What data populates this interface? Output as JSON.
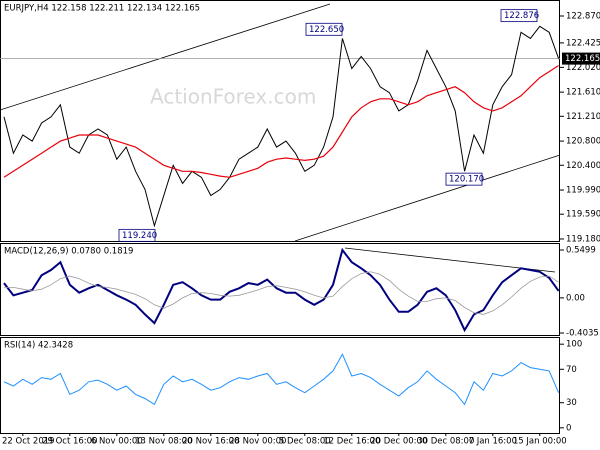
{
  "chart_data": [
    {
      "type": "line",
      "title": "EURJPY,H4  122.158 122.211 122.134 122.165",
      "watermark": "ActionForex.com",
      "ylim": [
        119.163,
        123.052
      ],
      "yticks": [
        {
          "value": 122.87,
          "label": "122.870"
        },
        {
          "value": 122.425,
          "label": "122.425"
        },
        {
          "value": 122.02,
          "label": "122.020"
        },
        {
          "value": 121.61,
          "label": "121.610"
        },
        {
          "value": 121.21,
          "label": "121.210"
        },
        {
          "value": 120.8,
          "label": "120.800"
        },
        {
          "value": 120.4,
          "label": "120.400"
        },
        {
          "value": 119.99,
          "label": "119.990"
        },
        {
          "value": 119.59,
          "label": "119.590"
        },
        {
          "value": 119.18,
          "label": "119.180"
        }
      ],
      "last_price": {
        "value": 122.165,
        "label": "122.165"
      },
      "annotations": [
        {
          "value": 122.65,
          "label": "122.650"
        },
        {
          "value": 119.24,
          "label": "119.240"
        },
        {
          "value": 120.17,
          "label": "120.170"
        },
        {
          "value": 122.876,
          "label": "122.876"
        }
      ],
      "series": [
        {
          "color": "#000000",
          "values": [
            121.2,
            120.6,
            120.9,
            120.8,
            121.1,
            121.2,
            121.4,
            120.7,
            120.6,
            120.9,
            121.0,
            120.9,
            120.5,
            120.7,
            120.3,
            120.0,
            119.4,
            119.9,
            120.4,
            120.1,
            120.3,
            120.2,
            119.9,
            120.0,
            120.2,
            120.5,
            120.6,
            120.7,
            121.0,
            120.7,
            120.8,
            120.6,
            120.3,
            120.4,
            120.7,
            121.2,
            122.5,
            122.0,
            122.2,
            122.0,
            121.7,
            121.6,
            121.3,
            121.4,
            121.8,
            122.3,
            122.0,
            121.7,
            121.3,
            120.3,
            120.9,
            120.6,
            121.4,
            121.7,
            121.9,
            122.6,
            122.5,
            122.7,
            122.6,
            122.165
          ]
        },
        {
          "color": "#e8000b",
          "values": [
            120.2,
            120.3,
            120.4,
            120.5,
            120.6,
            120.7,
            120.8,
            120.85,
            120.9,
            120.9,
            120.9,
            120.85,
            120.8,
            120.75,
            120.7,
            120.6,
            120.5,
            120.4,
            120.35,
            120.3,
            120.3,
            120.28,
            120.25,
            120.22,
            120.2,
            120.25,
            120.3,
            120.35,
            120.45,
            120.5,
            120.52,
            120.5,
            120.48,
            120.5,
            120.55,
            120.7,
            120.95,
            121.2,
            121.35,
            121.45,
            121.5,
            121.5,
            121.45,
            121.4,
            121.45,
            121.55,
            121.6,
            121.65,
            121.7,
            121.6,
            121.45,
            121.35,
            121.3,
            121.35,
            121.45,
            121.55,
            121.7,
            121.85,
            121.95,
            122.05
          ]
        }
      ]
    },
    {
      "type": "line",
      "title": "MACD(12,26,9) 0.0780 0.1819",
      "ylim": [
        -0.438,
        0.619
      ],
      "yticks": [
        0.5499,
        {
          "value": 0,
          "label": "0.00"
        },
        -0.4035
      ],
      "series": [
        {
          "color": "#00007f",
          "values": [
            0.17,
            0.03,
            0.06,
            0.09,
            0.26,
            0.32,
            0.41,
            0.15,
            0.06,
            0.11,
            0.15,
            0.09,
            0.03,
            -0.02,
            -0.08,
            -0.19,
            -0.29,
            -0.08,
            0.15,
            0.18,
            0.11,
            0.03,
            -0.02,
            -0.02,
            0.07,
            0.11,
            0.17,
            0.15,
            0.21,
            0.11,
            0.06,
            0.06,
            -0.02,
            -0.08,
            -0.02,
            0.15,
            0.55,
            0.41,
            0.34,
            0.26,
            0.15,
            -0.02,
            -0.16,
            -0.16,
            -0.08,
            0.07,
            0.11,
            0.03,
            -0.14,
            -0.37,
            -0.19,
            -0.14,
            0.03,
            0.18,
            0.26,
            0.34,
            0.32,
            0.3,
            0.23,
            0.08
          ]
        },
        {
          "color": "#9a9a9a",
          "values": [
            0.12,
            0.12,
            0.1,
            0.08,
            0.1,
            0.15,
            0.22,
            0.25,
            0.22,
            0.17,
            0.13,
            0.12,
            0.1,
            0.07,
            0.04,
            -0.01,
            -0.08,
            -0.12,
            -0.07,
            0.0,
            0.05,
            0.06,
            0.05,
            0.03,
            0.02,
            0.03,
            0.06,
            0.09,
            0.13,
            0.14,
            0.12,
            0.1,
            0.07,
            0.03,
            0.0,
            0.02,
            0.13,
            0.22,
            0.28,
            0.3,
            0.27,
            0.2,
            0.1,
            0.02,
            -0.04,
            -0.04,
            -0.01,
            0.0,
            -0.03,
            -0.11,
            -0.17,
            -0.19,
            -0.15,
            -0.08,
            0.01,
            0.11,
            0.19,
            0.24,
            0.25,
            0.18
          ]
        }
      ]
    },
    {
      "type": "line",
      "title": "RSI(14) 42.3428",
      "ylim": [
        -5,
        105
      ],
      "yticks": [
        100,
        70,
        30,
        0
      ],
      "categories": [
        null,
        null,
        "22 Oct 2019",
        null,
        null,
        null,
        null,
        "29 Oct 16:00",
        null,
        null,
        null,
        null,
        "6 Nov 00:00",
        null,
        null,
        null,
        null,
        "13 Nov 08:00",
        null,
        null,
        null,
        null,
        "20 Nov 16:00",
        null,
        null,
        null,
        null,
        "28 Nov 00:00",
        null,
        null,
        null,
        null,
        "5 Dec 08:00",
        null,
        null,
        null,
        null,
        "12 Dec 16:00",
        null,
        null,
        null,
        null,
        "20 Dec 00:00",
        null,
        null,
        null,
        null,
        "30 Dec 08:00",
        null,
        null,
        null,
        null,
        "7 Jan 16:00",
        null,
        null,
        null,
        null,
        "15 Jan 00:00",
        null,
        null
      ],
      "series": [
        {
          "color": "#1e90ff",
          "values": [
            55,
            50,
            58,
            52,
            60,
            58,
            65,
            40,
            45,
            55,
            57,
            52,
            45,
            50,
            40,
            35,
            28,
            52,
            62,
            55,
            58,
            52,
            45,
            48,
            55,
            60,
            58,
            62,
            65,
            52,
            55,
            48,
            42,
            50,
            58,
            68,
            88,
            62,
            65,
            60,
            52,
            45,
            38,
            48,
            55,
            68,
            58,
            50,
            42,
            28,
            55,
            45,
            65,
            62,
            68,
            78,
            72,
            70,
            68,
            42
          ]
        }
      ]
    }
  ]
}
